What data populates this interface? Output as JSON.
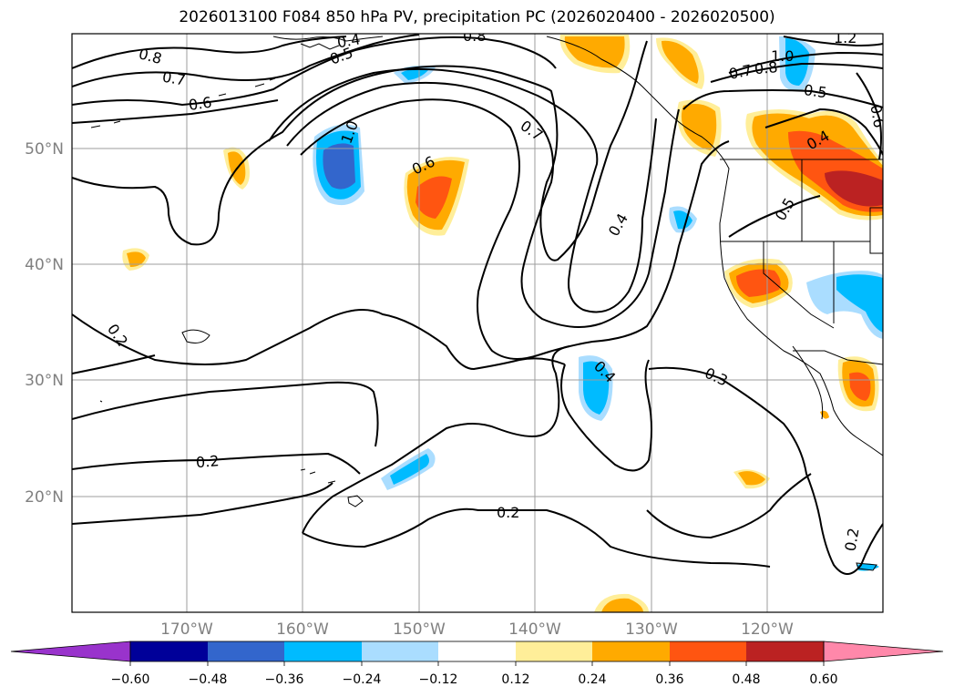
{
  "title": "2026013100 F084 850 hPa PV, precipitation PC (2026020400 - 2026020500)",
  "map": {
    "lat_labels": [
      "50°N",
      "40°N",
      "30°N",
      "20°N"
    ],
    "lon_labels": [
      "170°W",
      "160°W",
      "150°W",
      "140°W",
      "130°W",
      "120°W"
    ],
    "lat_range": [
      10,
      60
    ],
    "lon_range": [
      -180,
      -110
    ],
    "grid": true
  },
  "contour_labels": [
    "0.8",
    "0.7",
    "0.6",
    "0.4",
    "0.5",
    "0.8",
    "1.2",
    "1.0",
    "0.7",
    "0.8",
    "0.5",
    "0.6",
    "0.4",
    "1.0",
    "0.6",
    "0.7",
    "0.4",
    "0.5",
    "0.2",
    "0.4",
    "0.3",
    "0.2",
    "0.2",
    "0.2"
  ],
  "colorbar": {
    "ticks": [
      "−0.60",
      "−0.48",
      "−0.36",
      "−0.24",
      "−0.12",
      "0.12",
      "0.24",
      "0.36",
      "0.48",
      "0.60"
    ],
    "colors": [
      "#9933cc",
      "#000099",
      "#3366cc",
      "#00bbff",
      "#aaddff",
      "#ffffff",
      "#ffee99",
      "#ffaa00",
      "#ff5511",
      "#bb2222",
      "#ff88aa"
    ]
  }
}
